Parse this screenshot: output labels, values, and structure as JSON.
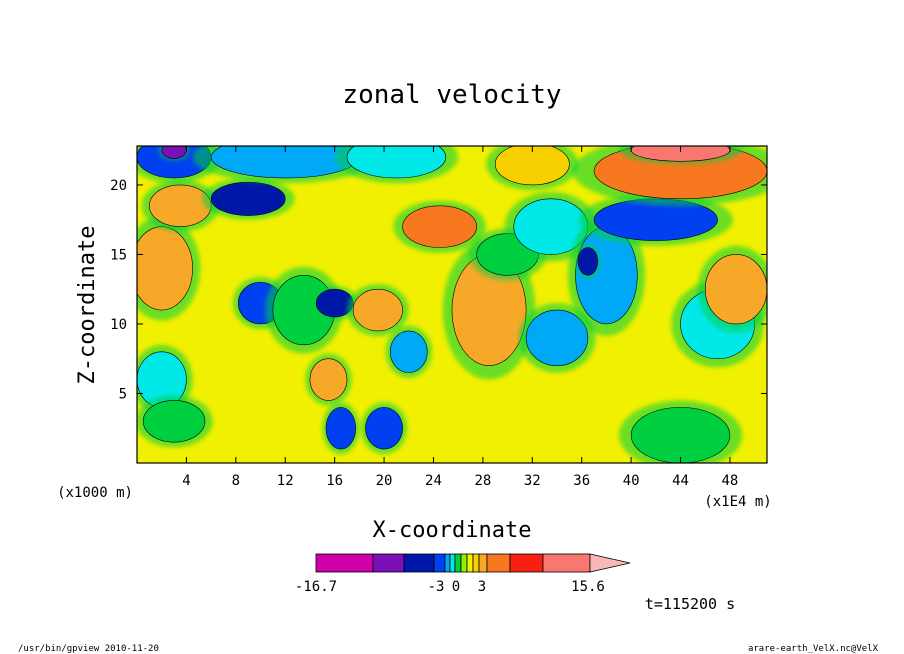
{
  "chart_data": {
    "type": "heatmap",
    "subtype": "filled-contour",
    "title": "zonal velocity",
    "xlabel": "X-coordinate",
    "ylabel": "Z-coordinate",
    "x_unit_label": "(x1E4 m)",
    "y_unit_label": "(x1000 m)",
    "xlim": [
      0,
      51
    ],
    "ylim": [
      0,
      22.8
    ],
    "x_ticks": [
      4,
      8,
      12,
      16,
      20,
      24,
      28,
      32,
      36,
      40,
      44,
      48
    ],
    "y_ticks": [
      5,
      10,
      15,
      20
    ],
    "time_label": "t=115200 s",
    "colorbar": {
      "min_label": "-16.7",
      "labels": [
        "-3",
        "0",
        "3"
      ],
      "max_label": "15.6",
      "colors": [
        "#d000a8",
        "#7a10b8",
        "#0018a8",
        "#0040f0",
        "#00a8f8",
        "#00e8e8",
        "#00d040",
        "#90f000",
        "#f0f000",
        "#f8d000",
        "#f8a828",
        "#f87820",
        "#f82010",
        "#f87870",
        "#f8b8b8"
      ]
    },
    "fields": {
      "background": "#f0f000",
      "blobs": [
        {
          "x": 2,
          "z": 14,
          "rx": 2.5,
          "rz": 3,
          "color": "#f8a828"
        },
        {
          "x": 2,
          "z": 6,
          "rx": 2,
          "rz": 2,
          "color": "#00e8e8"
        },
        {
          "x": 3,
          "z": 3,
          "rx": 2.5,
          "rz": 1.5,
          "color": "#00d040"
        },
        {
          "x": 3.5,
          "z": 18.5,
          "rx": 2.5,
          "rz": 1.5,
          "color": "#f8a828"
        },
        {
          "x": 9,
          "z": 19,
          "rx": 3,
          "rz": 1.2,
          "color": "#0018a8"
        },
        {
          "x": 10,
          "z": 11.5,
          "rx": 1.8,
          "rz": 1.5,
          "color": "#0040f0"
        },
        {
          "x": 13.5,
          "z": 11,
          "rx": 2.5,
          "rz": 2.5,
          "color": "#00d040"
        },
        {
          "x": 16,
          "z": 11.5,
          "rx": 1.5,
          "rz": 1,
          "color": "#0018a8"
        },
        {
          "x": 16.5,
          "z": 2.5,
          "rx": 1.2,
          "rz": 1.5,
          "color": "#0040f0"
        },
        {
          "x": 15.5,
          "z": 6,
          "rx": 1.5,
          "rz": 1.5,
          "color": "#f8a828"
        },
        {
          "x": 19.5,
          "z": 11,
          "rx": 2,
          "rz": 1.5,
          "color": "#f8a828"
        },
        {
          "x": 20,
          "z": 2.5,
          "rx": 1.5,
          "rz": 1.5,
          "color": "#0040f0"
        },
        {
          "x": 22,
          "z": 8,
          "rx": 1.5,
          "rz": 1.5,
          "color": "#00a8f8"
        },
        {
          "x": 24.5,
          "z": 17,
          "rx": 3,
          "rz": 1.5,
          "color": "#f87820"
        },
        {
          "x": 28.5,
          "z": 11,
          "rx": 3,
          "rz": 4,
          "color": "#f8a828"
        },
        {
          "x": 30,
          "z": 15,
          "rx": 2.5,
          "rz": 1.5,
          "color": "#00d040"
        },
        {
          "x": 33.5,
          "z": 17,
          "rx": 3,
          "rz": 2,
          "color": "#00e8e8"
        },
        {
          "x": 34,
          "z": 9,
          "rx": 2.5,
          "rz": 2,
          "color": "#00a8f8"
        },
        {
          "x": 38,
          "z": 13.5,
          "rx": 2.5,
          "rz": 3.5,
          "color": "#00a8f8"
        },
        {
          "x": 36.5,
          "z": 14.5,
          "rx": 0.8,
          "rz": 1,
          "color": "#0018a8"
        },
        {
          "x": 42,
          "z": 17.5,
          "rx": 5,
          "rz": 1.5,
          "color": "#0040f0"
        },
        {
          "x": 44,
          "z": 21,
          "rx": 7,
          "rz": 2,
          "color": "#f87820"
        },
        {
          "x": 44,
          "z": 22.5,
          "rx": 4,
          "rz": 0.8,
          "color": "#f87870"
        },
        {
          "x": 47,
          "z": 10,
          "rx": 3,
          "rz": 2.5,
          "color": "#00e8e8"
        },
        {
          "x": 48.5,
          "z": 12.5,
          "rx": 2.5,
          "rz": 2.5,
          "color": "#f8a828"
        },
        {
          "x": 44,
          "z": 2,
          "rx": 4,
          "rz": 2,
          "color": "#00d040"
        },
        {
          "x": 3,
          "z": 22,
          "rx": 3,
          "rz": 1.5,
          "color": "#0040f0"
        },
        {
          "x": 3,
          "z": 22.5,
          "rx": 1,
          "rz": 0.6,
          "color": "#7a10b8"
        },
        {
          "x": 12,
          "z": 22,
          "rx": 6,
          "rz": 1.5,
          "color": "#00a8f8"
        },
        {
          "x": 21,
          "z": 22,
          "rx": 4,
          "rz": 1.5,
          "color": "#00e8e8"
        },
        {
          "x": 32,
          "z": 21.5,
          "rx": 3,
          "rz": 1.5,
          "color": "#f8d000"
        }
      ]
    }
  },
  "footer": {
    "left": "/usr/bin/gpview   2010-11-20",
    "right": "arare-earth_VelX.nc@VelX"
  }
}
